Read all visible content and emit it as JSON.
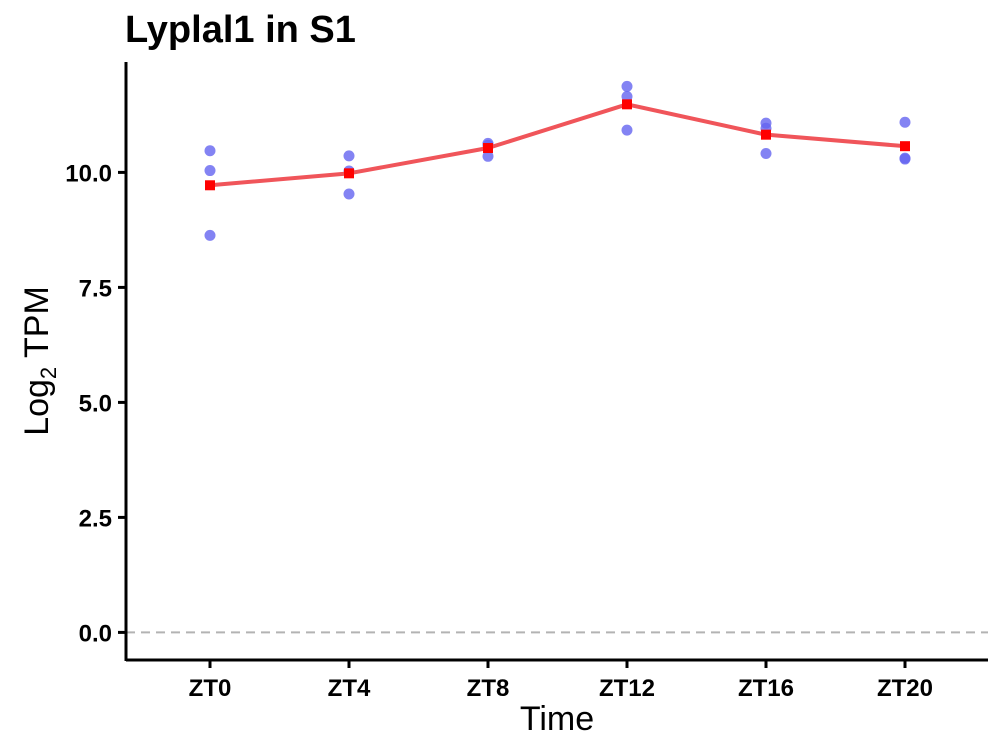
{
  "chart_data": {
    "type": "line",
    "title": "Lyplal1 in S1",
    "xlabel": "Time",
    "ylabel_main": "Log",
    "ylabel_sub": "2",
    "ylabel_rest": " TPM",
    "categories": [
      "ZT0",
      "ZT4",
      "ZT8",
      "ZT12",
      "ZT16",
      "ZT20"
    ],
    "ylim": [
      -0.6,
      12.4
    ],
    "yticks": [
      0.0,
      2.5,
      5.0,
      7.5,
      10.0
    ],
    "ytick_labels": [
      "0.0",
      "2.5",
      "5.0",
      "7.5",
      "10.0"
    ],
    "reference_line": {
      "y": 0.0,
      "style": "dashed",
      "color": "#b3b3b3"
    },
    "series": [
      {
        "kind": "replicates",
        "color": "#6464f0",
        "points": [
          {
            "x": "ZT0",
            "values": [
              10.47,
              10.04,
              8.63
            ]
          },
          {
            "x": "ZT4",
            "values": [
              10.36,
              10.03,
              9.53
            ]
          },
          {
            "x": "ZT8",
            "values": [
              10.63,
              10.59,
              10.35
            ]
          },
          {
            "x": "ZT12",
            "values": [
              11.87,
              11.65,
              10.92
            ]
          },
          {
            "x": "ZT16",
            "values": [
              11.07,
              10.96,
              10.41
            ]
          },
          {
            "x": "ZT20",
            "values": [
              11.09,
              10.31,
              10.29
            ]
          }
        ]
      },
      {
        "kind": "mean",
        "color": "#f0555a",
        "marker_color": "#ff0000",
        "values": [
          9.72,
          9.98,
          10.53,
          11.48,
          10.82,
          10.57
        ]
      }
    ],
    "grid": false,
    "legend": "none"
  }
}
